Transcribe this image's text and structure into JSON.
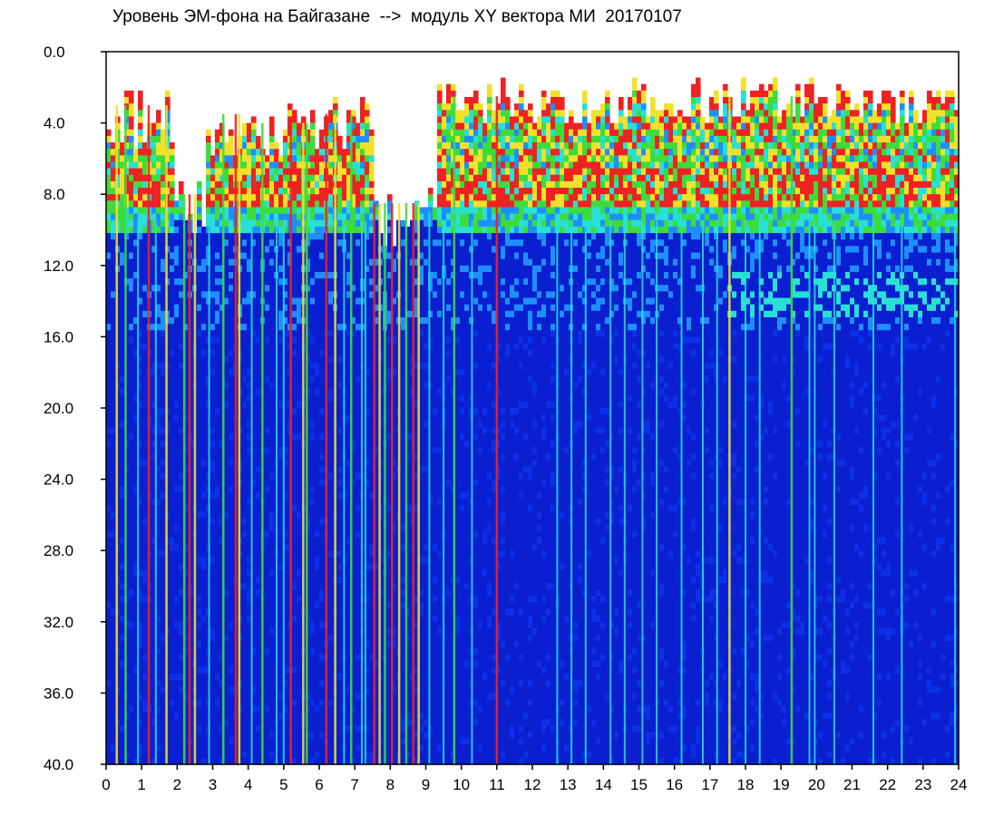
{
  "chart_data": {
    "type": "heatmap",
    "title": "Уровень ЭМ-фона на Байгазане  -->  модуль XY вектора МИ  20170107",
    "xlabel": "",
    "ylabel": "",
    "xlim": [
      0,
      24
    ],
    "ylim": [
      0,
      40
    ],
    "y_inverted": true,
    "x_ticks": [
      "0",
      "1",
      "2",
      "3",
      "4",
      "5",
      "6",
      "7",
      "8",
      "9",
      "10",
      "11",
      "12",
      "13",
      "14",
      "15",
      "16",
      "17",
      "18",
      "19",
      "20",
      "21",
      "22",
      "23",
      "24"
    ],
    "y_ticks": [
      "0.0",
      "4.0",
      "8.0",
      "12.0",
      "16.0",
      "20.0",
      "24.0",
      "28.0",
      "32.0",
      "36.0",
      "40.0"
    ],
    "colormap": [
      "#0a1fd0",
      "#1f8fff",
      "#29e0d4",
      "#3ddc3d",
      "#f2e12a",
      "#ee2222"
    ],
    "background_color": "#ffffff",
    "upper_band": {
      "description_segments": [
        {
          "x": [
            0,
            1.9
          ],
          "activity_top": 2.0,
          "band_low": 9.5
        },
        {
          "x": [
            1.9,
            2.8
          ],
          "activity_top": 7.0,
          "band_low": 9.0
        },
        {
          "x": [
            2.8,
            4.0
          ],
          "activity_top": 2.5,
          "band_low": 9.5
        },
        {
          "x": [
            4.0,
            6.0
          ],
          "activity_top": 3.0,
          "band_low": 9.5
        },
        {
          "x": [
            6.0,
            7.5
          ],
          "activity_top": 2.5,
          "band_low": 9.5
        },
        {
          "x": [
            7.5,
            9.3
          ],
          "activity_top": 7.5,
          "band_low": 9.0
        },
        {
          "x": [
            9.3,
            24.0
          ],
          "activity_top": 1.5,
          "band_low": 9.5
        }
      ],
      "secondary_band_y": [
        12.5,
        15.0
      ],
      "secondary_band_x": [
        17.5,
        24.0
      ]
    },
    "strong_streak_hours": [
      0.3,
      0.55,
      1.2,
      1.7,
      2.2,
      2.35,
      2.5,
      3.3,
      3.65,
      3.75,
      4.4,
      5.2,
      5.55,
      5.65,
      6.2,
      6.45,
      6.9,
      7.55,
      7.7,
      7.85,
      8.05,
      8.25,
      8.45,
      8.65,
      8.8,
      9.8,
      11.0,
      17.55,
      19.3
    ],
    "weak_streak_hours": [
      0.9,
      1.4,
      2.9,
      4.1,
      4.8,
      5.0,
      6.7,
      7.2,
      7.3,
      9.1,
      9.5,
      10.3,
      12.7,
      13.1,
      13.5,
      14.2,
      14.6,
      15.1,
      15.5,
      16.2,
      16.8,
      17.2,
      18.0,
      18.4,
      19.8,
      19.95,
      20.5,
      21.6,
      22.4,
      23.9
    ]
  }
}
